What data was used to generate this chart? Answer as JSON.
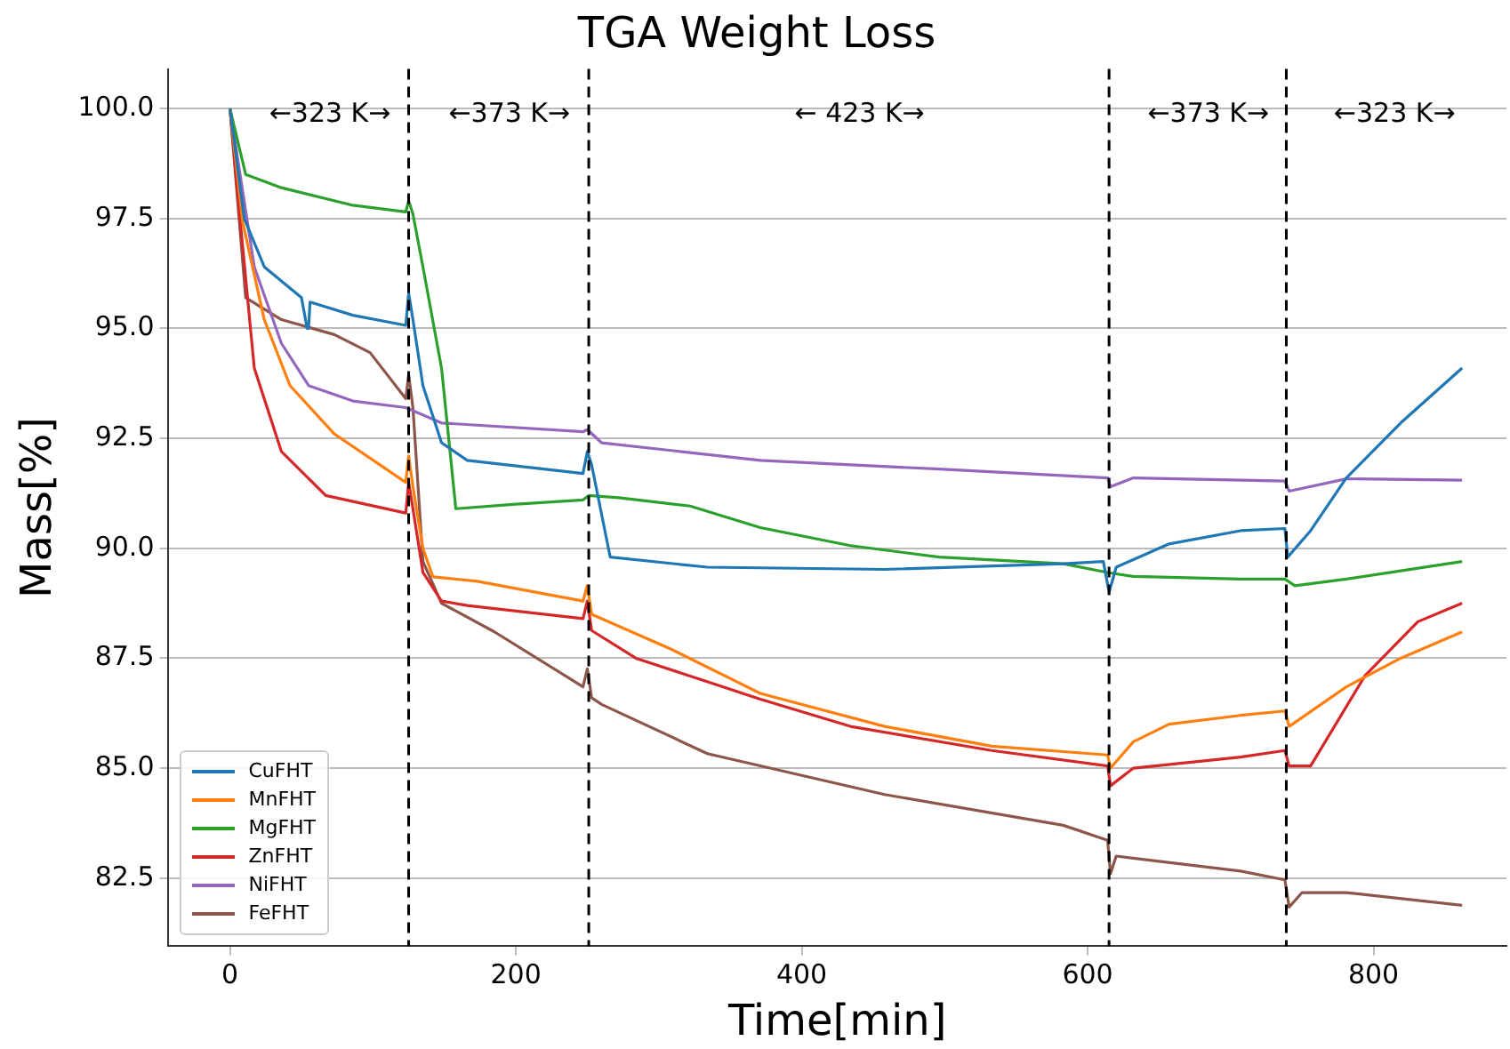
{
  "chart_data": {
    "type": "line",
    "title": "TGA Weight Loss",
    "xlabel": "Time[min]",
    "ylabel": "Mass[%]",
    "xlim": [
      -43,
      893
    ],
    "xticks": [
      0,
      200,
      400,
      600,
      800
    ],
    "ylim": [
      80.95,
      100.9
    ],
    "yticks": [
      {
        "value": 82.5,
        "label": "82.5"
      },
      {
        "value": 85,
        "label": "85.0"
      },
      {
        "value": 87.5,
        "label": "87.5"
      },
      {
        "value": 90,
        "label": "90.0"
      },
      {
        "value": 92.5,
        "label": "92.5"
      },
      {
        "value": 95,
        "label": "95.0"
      },
      {
        "value": 97.5,
        "label": "97.5"
      },
      {
        "value": 100,
        "label": "100.0"
      }
    ],
    "grid": "y",
    "legend": "bottom left",
    "marker": "none",
    "line_style": "solid",
    "ref_lines": [
      {
        "axis": "x",
        "value": 125,
        "color": "#000000",
        "line_style": "dashed"
      },
      {
        "axis": "x",
        "value": 251,
        "color": "#000000",
        "line_style": "dashed"
      },
      {
        "axis": "x",
        "value": 615,
        "color": "#000000",
        "line_style": "dashed"
      },
      {
        "axis": "x",
        "value": 739,
        "color": "#000000",
        "line_style": "dashed"
      }
    ],
    "annotations": [
      "←323 K→",
      "←373 K→",
      "← 423 K→",
      "←373 K→",
      "←323 K→"
    ],
    "series": [
      {
        "name": "CuFHT",
        "color": "#1f77b4",
        "x": [
          0,
          10,
          24,
          50,
          54,
          55,
          56,
          86,
          123,
          125,
          128,
          135,
          148,
          166,
          247,
          250,
          253,
          266,
          334,
          458,
          583,
          611,
          615,
          620,
          657,
          707,
          738,
          740,
          756,
          781,
          819,
          862
        ],
        "values": [
          100,
          97.5,
          96.4,
          95.7,
          95.0,
          95.0,
          95.6,
          95.3,
          95.07,
          95.8,
          95.2,
          93.7,
          92.4,
          92.0,
          91.7,
          92.2,
          91.9,
          89.8,
          89.57,
          89.52,
          89.65,
          89.7,
          89.0,
          89.57,
          90.1,
          90.4,
          90.45,
          89.8,
          90.4,
          91.6,
          92.85,
          94.1
        ]
      },
      {
        "name": "MnFHT",
        "color": "#ff7f0e",
        "x": [
          0,
          9,
          24,
          42,
          73,
          123,
          125,
          128,
          135,
          142,
          173,
          247,
          250,
          253,
          309,
          371,
          458,
          533,
          614,
          616,
          632,
          657,
          707,
          738,
          741,
          781,
          819,
          862
        ],
        "values": [
          100,
          97.4,
          95.2,
          93.7,
          92.6,
          91.5,
          92.1,
          91.4,
          90.0,
          89.35,
          89.25,
          88.8,
          89.15,
          88.5,
          87.7,
          86.7,
          85.95,
          85.5,
          85.3,
          85.0,
          85.6,
          86.0,
          86.2,
          86.3,
          85.95,
          86.85,
          87.5,
          88.1
        ]
      },
      {
        "name": "MgFHT",
        "color": "#2ca02c",
        "x": [
          0,
          11,
          36,
          86,
          123,
          125,
          128,
          135,
          148,
          158,
          198,
          247,
          251,
          272,
          322,
          371,
          434,
          496,
          583,
          614,
          632,
          707,
          738,
          745,
          781,
          862
        ],
        "values": [
          100,
          98.5,
          98.2,
          97.8,
          97.65,
          97.9,
          97.6,
          96.4,
          94.1,
          90.9,
          91.0,
          91.1,
          91.2,
          91.15,
          90.96,
          90.47,
          90.06,
          89.8,
          89.65,
          89.45,
          89.36,
          89.3,
          89.3,
          89.15,
          89.3,
          89.7
        ]
      },
      {
        "name": "ZnFHT",
        "color": "#d62728",
        "x": [
          0,
          7,
          17,
          36,
          67,
          123,
          125,
          128,
          135,
          148,
          166,
          247,
          250,
          253,
          284,
          371,
          434,
          533,
          614,
          616,
          632,
          707,
          738,
          741,
          756,
          794,
          831,
          862
        ],
        "values": [
          100,
          97.5,
          94.1,
          92.2,
          91.2,
          90.8,
          91.5,
          90.9,
          89.45,
          88.8,
          88.7,
          88.4,
          88.8,
          88.13,
          87.5,
          86.57,
          85.95,
          85.4,
          85.05,
          84.6,
          85.0,
          85.25,
          85.4,
          85.05,
          85.05,
          87.1,
          88.33,
          88.75
        ]
      },
      {
        "name": "NiFHT",
        "color": "#9467bd",
        "x": [
          0,
          17,
          36,
          55,
          86,
          123,
          148,
          247,
          250,
          260,
          371,
          496,
          614,
          616,
          632,
          738,
          741,
          781,
          862
        ],
        "values": [
          100,
          96.4,
          94.66,
          93.7,
          93.35,
          93.2,
          92.85,
          92.65,
          92.7,
          92.4,
          92.0,
          91.8,
          91.6,
          91.4,
          91.6,
          91.53,
          91.3,
          91.58,
          91.55
        ]
      },
      {
        "name": "FeFHT",
        "color": "#8c564b",
        "x": [
          0,
          11,
          36,
          73,
          98,
          123,
          125,
          128,
          135,
          148,
          185,
          247,
          250,
          253,
          260,
          334,
          458,
          583,
          614,
          616,
          620,
          707,
          738,
          741,
          750,
          781,
          862
        ],
        "values": [
          100,
          95.7,
          95.2,
          94.86,
          94.45,
          93.4,
          93.95,
          93.2,
          89.7,
          88.75,
          88.1,
          86.85,
          87.26,
          86.6,
          86.45,
          85.33,
          84.4,
          83.7,
          83.36,
          82.6,
          83.0,
          82.66,
          82.46,
          81.84,
          82.17,
          82.17,
          81.88
        ]
      }
    ]
  }
}
